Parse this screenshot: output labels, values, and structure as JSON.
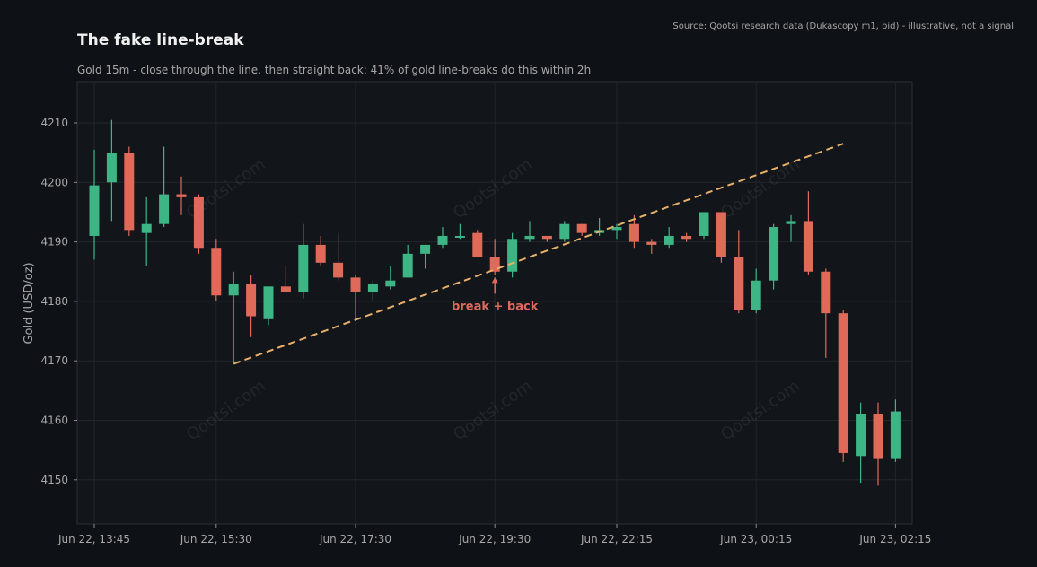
{
  "chart_data": {
    "type": "candlestick",
    "title": "The fake line-break",
    "subtitle": "Gold 15m - close through the line, then straight back: 41% of gold line-breaks do this within 2h",
    "source": "Source: Qootsi research data (Dukascopy m1, bid) - illustrative, not a signal",
    "ylabel": "Gold (USD/oz)",
    "ylim": [
      4143,
      4217
    ],
    "y_ticks": [
      4150,
      4160,
      4170,
      4180,
      4190,
      4200,
      4210
    ],
    "x_ticks": [
      "Jun 22, 13:45",
      "Jun 22, 15:30",
      "Jun 22, 17:30",
      "Jun 22, 19:30",
      "Jun 22, 22:15",
      "Jun 23, 00:15",
      "Jun 23, 02:15"
    ],
    "x_tick_index": [
      0,
      7,
      15,
      23,
      30,
      38,
      46
    ],
    "grid": true,
    "colors": {
      "up": "#3db585",
      "down": "#e06a5a",
      "line": "#e8b06a",
      "grid": "#22262c"
    },
    "candles": [
      [
        4191.0,
        4205.5,
        4187.0,
        4199.5
      ],
      [
        4200.0,
        4210.5,
        4193.5,
        4205.0
      ],
      [
        4205.0,
        4206.0,
        4191.0,
        4192.0
      ],
      [
        4191.5,
        4197.5,
        4186.0,
        4193.0
      ],
      [
        4193.0,
        4206.0,
        4192.5,
        4198.0
      ],
      [
        4198.0,
        4201.0,
        4194.5,
        4197.5
      ],
      [
        4197.5,
        4198.0,
        4188.0,
        4189.0
      ],
      [
        4189.0,
        4190.5,
        4180.0,
        4181.0
      ],
      [
        4181.0,
        4185.0,
        4169.5,
        4183.0
      ],
      [
        4183.0,
        4184.5,
        4174.0,
        4177.5
      ],
      [
        4177.0,
        4182.5,
        4176.0,
        4182.5
      ],
      [
        4182.5,
        4186.0,
        4181.5,
        4181.5
      ],
      [
        4181.5,
        4193.0,
        4180.5,
        4189.5
      ],
      [
        4189.5,
        4191.0,
        4186.0,
        4186.5
      ],
      [
        4186.5,
        4191.5,
        4183.5,
        4184.0
      ],
      [
        4184.0,
        4184.5,
        4177.0,
        4181.5
      ],
      [
        4181.5,
        4183.5,
        4180.0,
        4183.0
      ],
      [
        4182.5,
        4186.0,
        4182.0,
        4183.5
      ],
      [
        4184.0,
        4189.5,
        4184.0,
        4188.0
      ],
      [
        4188.0,
        4189.5,
        4185.5,
        4189.5
      ],
      [
        4189.5,
        4192.5,
        4189.0,
        4191.0
      ],
      [
        4191.0,
        4193.0,
        4190.5,
        4191.0
      ],
      [
        4191.5,
        4192.0,
        4187.5,
        4187.5
      ],
      [
        4187.5,
        4190.5,
        4184.5,
        4185.0
      ],
      [
        4185.0,
        4191.5,
        4184.0,
        4190.5
      ],
      [
        4190.5,
        4193.5,
        4190.0,
        4191.0
      ],
      [
        4191.0,
        4191.0,
        4190.0,
        4190.5
      ],
      [
        4190.5,
        4193.5,
        4190.0,
        4193.0
      ],
      [
        4193.0,
        4193.0,
        4191.0,
        4191.5
      ],
      [
        4191.5,
        4194.0,
        4191.0,
        4192.0
      ],
      [
        4192.0,
        4193.0,
        4190.5,
        4192.5
      ],
      [
        4193.0,
        4194.5,
        4189.0,
        4190.0
      ],
      [
        4190.0,
        4190.5,
        4188.0,
        4189.5
      ],
      [
        4189.5,
        4192.5,
        4189.0,
        4191.0
      ],
      [
        4191.0,
        4191.5,
        4190.0,
        4190.5
      ],
      [
        4191.0,
        4195.0,
        4190.5,
        4195.0
      ],
      [
        4195.0,
        4195.0,
        4186.5,
        4187.5
      ],
      [
        4187.5,
        4192.0,
        4178.0,
        4178.5
      ],
      [
        4178.5,
        4185.5,
        4178.0,
        4183.5
      ],
      [
        4183.5,
        4193.0,
        4182.0,
        4192.5
      ],
      [
        4193.0,
        4194.5,
        4190.0,
        4193.5
      ],
      [
        4193.5,
        4198.5,
        4184.5,
        4185.0
      ],
      [
        4185.0,
        4185.5,
        4170.5,
        4178.0
      ],
      [
        4178.0,
        4178.5,
        4153.0,
        4154.5
      ],
      [
        4154.0,
        4163.0,
        4149.5,
        4161.0
      ],
      [
        4161.0,
        4163.0,
        4149.0,
        4153.5
      ],
      [
        4153.5,
        4163.5,
        4153.0,
        4161.5
      ]
    ],
    "trendline": {
      "from": [
        8,
        4169.5
      ],
      "to": [
        43,
        4206.5
      ],
      "style": "dashed"
    },
    "annotations": [
      {
        "text": "break + back",
        "at": [
          23,
          4184.0
        ]
      }
    ],
    "watermark": "Qootsi.com"
  }
}
